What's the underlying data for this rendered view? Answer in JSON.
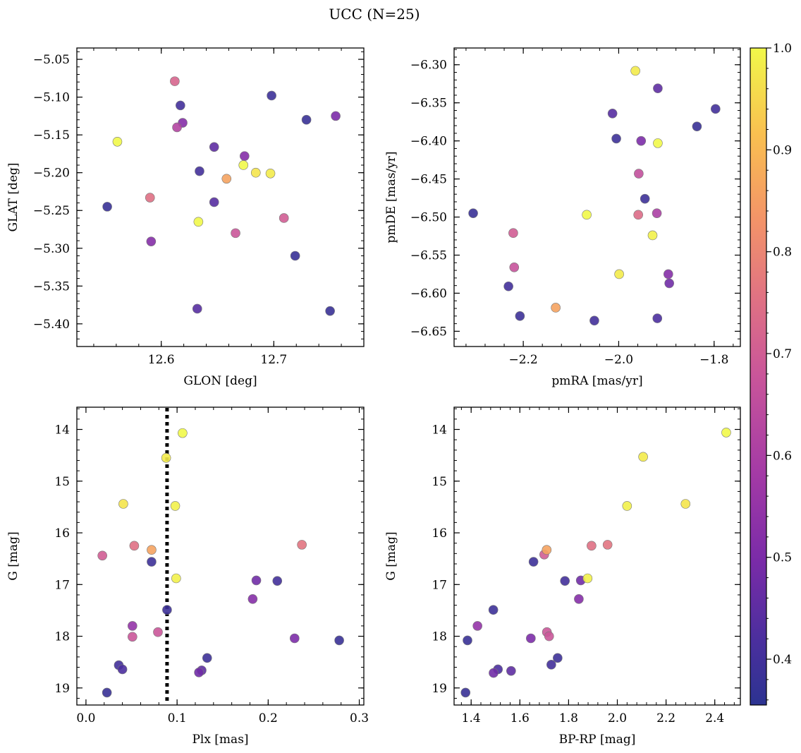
{
  "figure": {
    "title": "UCC (N=25)"
  },
  "colorbar": {
    "range": [
      0.355,
      1.0
    ],
    "ticks": [
      0.4,
      0.5,
      0.6,
      0.7,
      0.8,
      0.9,
      1.0
    ],
    "tick_labels": [
      "0.4",
      "0.5",
      "0.6",
      "0.7",
      "0.8",
      "0.9",
      "1.0"
    ],
    "colormap": "plasma"
  },
  "chart_data": [
    {
      "type": "scatter",
      "xlabel": "GLON [deg]",
      "ylabel": "GLAT [deg]",
      "xlim": [
        12.525,
        12.78
      ],
      "ylim": [
        -5.43,
        -5.035
      ],
      "xticks": [
        12.6,
        12.7
      ],
      "xtick_labels": [
        "12.6",
        "12.7"
      ],
      "yticks": [
        -5.05,
        -5.1,
        -5.15,
        -5.2,
        -5.25,
        -5.3,
        -5.35,
        -5.4
      ],
      "ytick_labels": [
        "−5.05",
        "−5.10",
        "−5.15",
        "−5.20",
        "−5.25",
        "−5.30",
        "−5.35",
        "−5.40"
      ],
      "invert_y": false,
      "points": [
        {
          "x": 12.612,
          "y": -5.079,
          "c": 0.72
        },
        {
          "x": 12.617,
          "y": -5.111,
          "c": 0.4
        },
        {
          "x": 12.619,
          "y": -5.134,
          "c": 0.52
        },
        {
          "x": 12.614,
          "y": -5.14,
          "c": 0.62
        },
        {
          "x": 12.561,
          "y": -5.159,
          "c": 1.0
        },
        {
          "x": 12.698,
          "y": -5.098,
          "c": 0.39
        },
        {
          "x": 12.729,
          "y": -5.13,
          "c": 0.38
        },
        {
          "x": 12.755,
          "y": -5.125,
          "c": 0.5
        },
        {
          "x": 12.647,
          "y": -5.166,
          "c": 0.45
        },
        {
          "x": 12.674,
          "y": -5.178,
          "c": 0.52
        },
        {
          "x": 12.673,
          "y": -5.19,
          "c": 1.0
        },
        {
          "x": 12.684,
          "y": -5.2,
          "c": 0.97
        },
        {
          "x": 12.697,
          "y": -5.201,
          "c": 0.98
        },
        {
          "x": 12.634,
          "y": -5.198,
          "c": 0.4
        },
        {
          "x": 12.658,
          "y": -5.208,
          "c": 0.86
        },
        {
          "x": 12.59,
          "y": -5.233,
          "c": 0.75
        },
        {
          "x": 12.552,
          "y": -5.245,
          "c": 0.38
        },
        {
          "x": 12.647,
          "y": -5.239,
          "c": 0.44
        },
        {
          "x": 12.633,
          "y": -5.265,
          "c": 1.0
        },
        {
          "x": 12.709,
          "y": -5.26,
          "c": 0.7
        },
        {
          "x": 12.666,
          "y": -5.28,
          "c": 0.68
        },
        {
          "x": 12.591,
          "y": -5.291,
          "c": 0.52
        },
        {
          "x": 12.719,
          "y": -5.31,
          "c": 0.38
        },
        {
          "x": 12.632,
          "y": -5.38,
          "c": 0.44
        },
        {
          "x": 12.75,
          "y": -5.383,
          "c": 0.38
        }
      ]
    },
    {
      "type": "scatter",
      "xlabel": "pmRA [mas/yr]",
      "ylabel": "pmDE [mas/yr]",
      "xlim": [
        -2.345,
        -1.745
      ],
      "ylim": [
        -6.67,
        -6.278
      ],
      "xticks": [
        -2.2,
        -2.0,
        -1.8
      ],
      "xtick_labels": [
        "−2.2",
        "−2.0",
        "−1.8"
      ],
      "yticks": [
        -6.3,
        -6.35,
        -6.4,
        -6.45,
        -6.5,
        -6.55,
        -6.6,
        -6.65
      ],
      "ytick_labels": [
        "−6.30",
        "−6.35",
        "−6.40",
        "−6.45",
        "−6.50",
        "−6.55",
        "−6.60",
        "−6.65"
      ],
      "invert_y": false,
      "points": [
        {
          "x": -1.965,
          "y": -6.308,
          "c": 0.98
        },
        {
          "x": -1.918,
          "y": -6.331,
          "c": 0.45
        },
        {
          "x": -1.797,
          "y": -6.358,
          "c": 0.4
        },
        {
          "x": -2.013,
          "y": -6.364,
          "c": 0.44
        },
        {
          "x": -1.836,
          "y": -6.381,
          "c": 0.38
        },
        {
          "x": -2.005,
          "y": -6.397,
          "c": 0.39
        },
        {
          "x": -1.953,
          "y": -6.4,
          "c": 0.5
        },
        {
          "x": -1.918,
          "y": -6.403,
          "c": 1.0
        },
        {
          "x": -1.958,
          "y": -6.443,
          "c": 0.66
        },
        {
          "x": -1.945,
          "y": -6.476,
          "c": 0.39
        },
        {
          "x": -2.305,
          "y": -6.495,
          "c": 0.38
        },
        {
          "x": -2.067,
          "y": -6.497,
          "c": 1.0
        },
        {
          "x": -1.959,
          "y": -6.497,
          "c": 0.74
        },
        {
          "x": -1.92,
          "y": -6.495,
          "c": 0.6
        },
        {
          "x": -2.221,
          "y": -6.521,
          "c": 0.7
        },
        {
          "x": -1.929,
          "y": -6.524,
          "c": 0.99
        },
        {
          "x": -2.219,
          "y": -6.566,
          "c": 0.67
        },
        {
          "x": -1.999,
          "y": -6.575,
          "c": 0.98
        },
        {
          "x": -1.896,
          "y": -6.575,
          "c": 0.52
        },
        {
          "x": -1.894,
          "y": -6.587,
          "c": 0.48
        },
        {
          "x": -2.231,
          "y": -6.591,
          "c": 0.4
        },
        {
          "x": -2.132,
          "y": -6.619,
          "c": 0.86
        },
        {
          "x": -2.207,
          "y": -6.63,
          "c": 0.39
        },
        {
          "x": -2.051,
          "y": -6.636,
          "c": 0.4
        },
        {
          "x": -1.919,
          "y": -6.633,
          "c": 0.42
        }
      ]
    },
    {
      "type": "scatter",
      "xlabel": "Plx [mas]",
      "ylabel": "G [mag]",
      "xlim": [
        -0.01,
        0.305
      ],
      "ylim": [
        19.33,
        13.57
      ],
      "xticks": [
        0.0,
        0.1,
        0.2,
        0.3
      ],
      "xtick_labels": [
        "0.0",
        "0.1",
        "0.2",
        "0.3"
      ],
      "yticks": [
        14,
        15,
        16,
        17,
        18,
        19
      ],
      "ytick_labels": [
        "14",
        "15",
        "16",
        "17",
        "18",
        "19"
      ],
      "invert_y": true,
      "vline": {
        "x": 0.089,
        "style": "dotted"
      },
      "points": [
        {
          "x": 0.106,
          "y": 14.07,
          "c": 1.0
        },
        {
          "x": 0.088,
          "y": 14.55,
          "c": 0.98
        },
        {
          "x": 0.041,
          "y": 15.44,
          "c": 0.97
        },
        {
          "x": 0.098,
          "y": 15.48,
          "c": 0.99
        },
        {
          "x": 0.018,
          "y": 16.44,
          "c": 0.7
        },
        {
          "x": 0.053,
          "y": 16.25,
          "c": 0.75
        },
        {
          "x": 0.072,
          "y": 16.33,
          "c": 0.86
        },
        {
          "x": 0.237,
          "y": 16.23,
          "c": 0.76
        },
        {
          "x": 0.072,
          "y": 16.56,
          "c": 0.39
        },
        {
          "x": 0.099,
          "y": 16.88,
          "c": 0.99
        },
        {
          "x": 0.187,
          "y": 16.92,
          "c": 0.48
        },
        {
          "x": 0.21,
          "y": 16.93,
          "c": 0.4
        },
        {
          "x": 0.183,
          "y": 17.28,
          "c": 0.52
        },
        {
          "x": 0.089,
          "y": 17.49,
          "c": 0.39
        },
        {
          "x": 0.051,
          "y": 17.8,
          "c": 0.55
        },
        {
          "x": 0.079,
          "y": 17.92,
          "c": 0.68
        },
        {
          "x": 0.051,
          "y": 18.01,
          "c": 0.68
        },
        {
          "x": 0.229,
          "y": 18.04,
          "c": 0.5
        },
        {
          "x": 0.278,
          "y": 18.08,
          "c": 0.38
        },
        {
          "x": 0.133,
          "y": 18.42,
          "c": 0.39
        },
        {
          "x": 0.036,
          "y": 18.56,
          "c": 0.4
        },
        {
          "x": 0.04,
          "y": 18.64,
          "c": 0.42
        },
        {
          "x": 0.127,
          "y": 18.66,
          "c": 0.45
        },
        {
          "x": 0.124,
          "y": 18.7,
          "c": 0.48
        },
        {
          "x": 0.023,
          "y": 19.09,
          "c": 0.38
        }
      ]
    },
    {
      "type": "scatter",
      "xlabel": "BP-RP [mag]",
      "ylabel": "G [mag]",
      "xlim": [
        1.33,
        2.505
      ],
      "ylim": [
        19.33,
        13.57
      ],
      "xticks": [
        1.4,
        1.6,
        1.8,
        2.0,
        2.2,
        2.4
      ],
      "xtick_labels": [
        "1.4",
        "1.6",
        "1.8",
        "2.0",
        "2.2",
        "2.4"
      ],
      "yticks": [
        14,
        15,
        16,
        17,
        18,
        19
      ],
      "ytick_labels": [
        "14",
        "15",
        "16",
        "17",
        "18",
        "19"
      ],
      "invert_y": true,
      "points": [
        {
          "x": 2.447,
          "y": 14.06,
          "c": 1.0
        },
        {
          "x": 2.106,
          "y": 14.53,
          "c": 0.98
        },
        {
          "x": 2.04,
          "y": 15.48,
          "c": 0.99
        },
        {
          "x": 2.28,
          "y": 15.44,
          "c": 0.97
        },
        {
          "x": 1.7,
          "y": 16.42,
          "c": 0.7
        },
        {
          "x": 1.71,
          "y": 16.33,
          "c": 0.86
        },
        {
          "x": 1.894,
          "y": 16.25,
          "c": 0.75
        },
        {
          "x": 1.96,
          "y": 16.23,
          "c": 0.76
        },
        {
          "x": 1.656,
          "y": 16.56,
          "c": 0.39
        },
        {
          "x": 1.785,
          "y": 16.93,
          "c": 0.4
        },
        {
          "x": 1.85,
          "y": 16.92,
          "c": 0.48
        },
        {
          "x": 1.878,
          "y": 16.88,
          "c": 0.99
        },
        {
          "x": 1.842,
          "y": 17.28,
          "c": 0.52
        },
        {
          "x": 1.491,
          "y": 17.49,
          "c": 0.39
        },
        {
          "x": 1.426,
          "y": 17.8,
          "c": 0.55
        },
        {
          "x": 1.711,
          "y": 17.92,
          "c": 0.68
        },
        {
          "x": 1.72,
          "y": 18.0,
          "c": 0.68
        },
        {
          "x": 1.645,
          "y": 18.04,
          "c": 0.5
        },
        {
          "x": 1.385,
          "y": 18.08,
          "c": 0.38
        },
        {
          "x": 1.755,
          "y": 18.42,
          "c": 0.39
        },
        {
          "x": 1.729,
          "y": 18.55,
          "c": 0.4
        },
        {
          "x": 1.51,
          "y": 18.64,
          "c": 0.42
        },
        {
          "x": 1.564,
          "y": 18.67,
          "c": 0.45
        },
        {
          "x": 1.492,
          "y": 18.71,
          "c": 0.48
        },
        {
          "x": 1.377,
          "y": 19.09,
          "c": 0.38
        }
      ]
    }
  ]
}
